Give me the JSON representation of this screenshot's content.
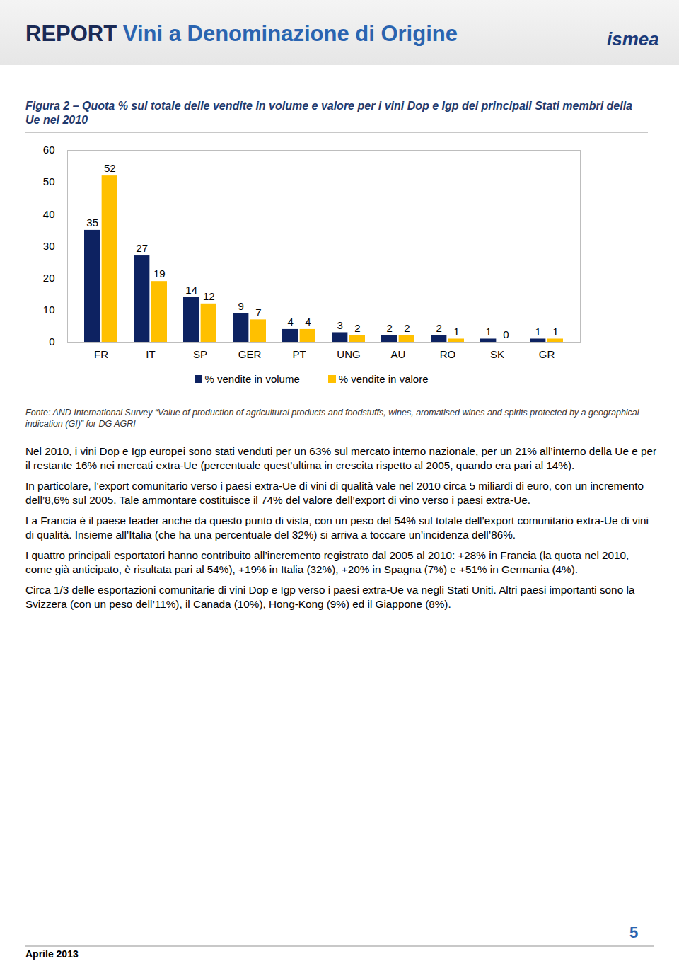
{
  "header": {
    "title_part1": "REPORT",
    "title_part2": "Vini a Denominazione di Origine",
    "logo": "ismea"
  },
  "chart_data": {
    "type": "bar",
    "title": "Figura 2 – Quota % sul totale delle vendite in volume e valore per i vini Dop e Igp dei principali Stati membri della Ue nel 2010",
    "categories": [
      "FR",
      "IT",
      "SP",
      "GER",
      "PT",
      "UNG",
      "AU",
      "RO",
      "SK",
      "GR"
    ],
    "series": [
      {
        "name": "% vendite in volume",
        "color": "#0d2261",
        "values": [
          35,
          27,
          14,
          9,
          4,
          3,
          2,
          2,
          1,
          1
        ]
      },
      {
        "name": "% vendite in valore",
        "color": "#ffc000",
        "values": [
          52,
          19,
          12,
          7,
          4,
          2,
          2,
          1,
          0,
          1
        ]
      }
    ],
    "ylim": [
      0,
      60
    ],
    "yticks": [
      0,
      10,
      20,
      30,
      40,
      50,
      60
    ],
    "grid": false,
    "data_labels": true,
    "legend": "bottom"
  },
  "source": "Fonte: AND International Survey “Value of production of agricultural products and foodstuffs, wines, aromatised wines and spirits protected by a geographical indication (GI)” for DG AGRI",
  "paragraphs": [
    "Nel 2010, i vini Dop e Igp europei sono stati venduti per un 63% sul mercato interno nazionale, per un 21% all’interno della Ue e per il restante 16% nei mercati extra-Ue (percentuale quest’ultima in crescita rispetto al 2005, quando era pari al 14%).",
    "In particolare, l’export comunitario verso i paesi extra-Ue di vini di qualità vale nel 2010 circa 5 miliardi di euro, con un incremento dell’8,6% sul 2005. Tale ammontare costituisce il 74% del valore dell’export di vino verso i paesi extra-Ue.",
    "La Francia è il paese leader anche da questo punto di vista, con un peso del 54% sul totale dell’export comunitario extra-Ue di vini di qualità. Insieme all’Italia (che ha una percentuale del 32%) si arriva a toccare un’incidenza dell’86%.",
    "I quattro principali esportatori hanno contribuito all’incremento registrato dal 2005 al 2010: +28% in Francia (la quota nel 2010, come già anticipato, è risultata pari al 54%), +19% in Italia (32%), +20% in Spagna (7%) e +51% in Germania (4%).",
    "Circa 1/3 delle esportazioni comunitarie di vini Dop e Igp verso i paesi extra-Ue va negli Stati Uniti. Altri paesi importanti sono la Svizzera (con un peso dell’11%), il Canada (10%), Hong-Kong (9%) ed il Giappone (8%)."
  ],
  "footer": {
    "page_number": 5,
    "date": "Aprile 2013"
  }
}
